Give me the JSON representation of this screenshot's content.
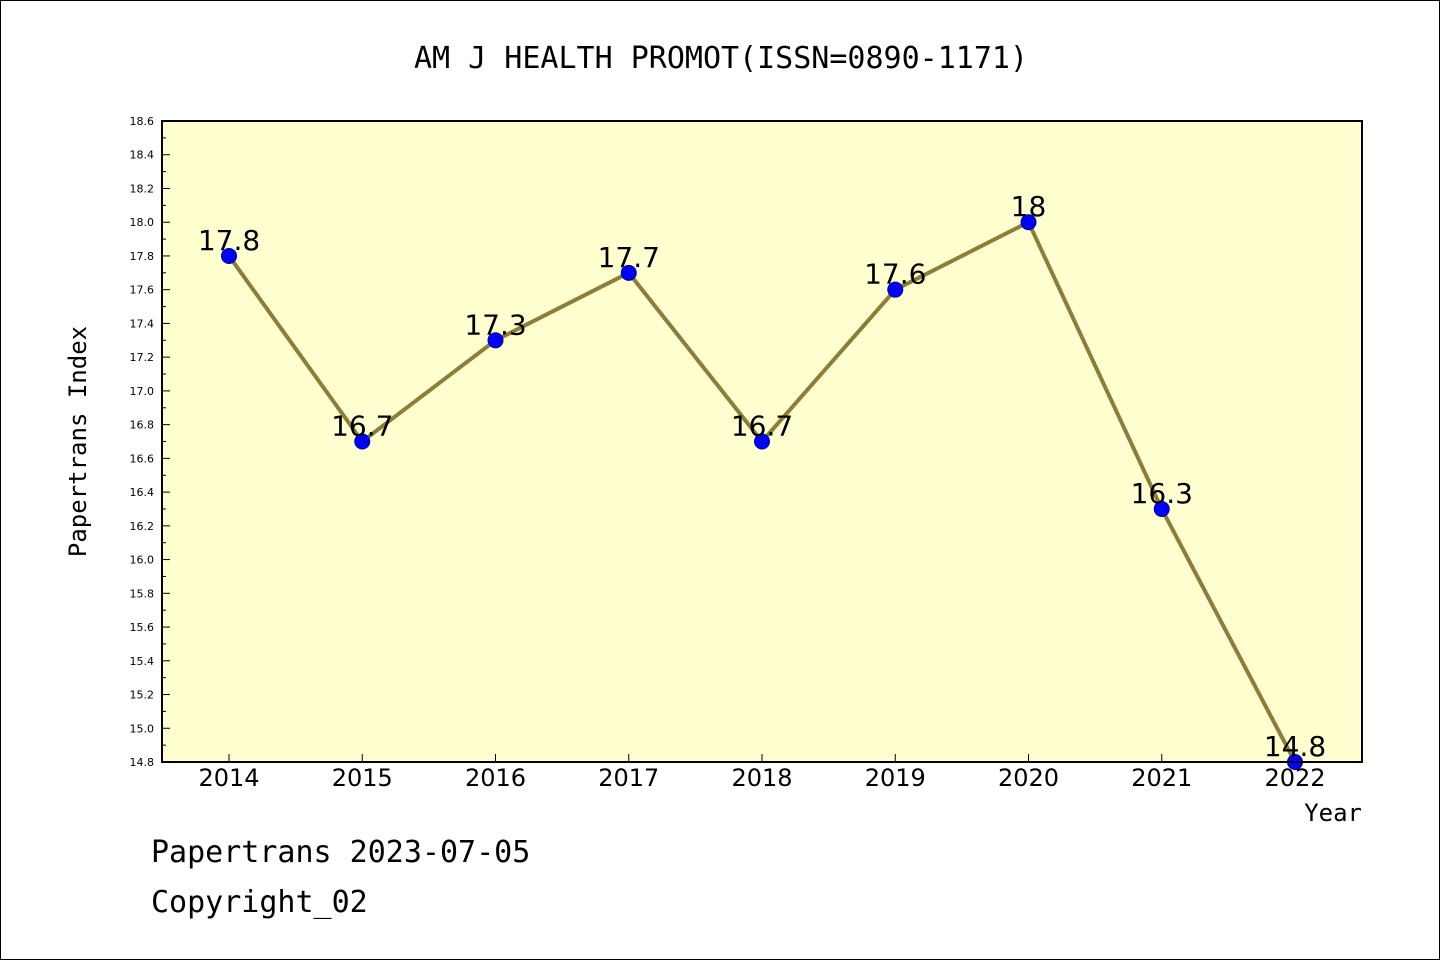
{
  "footer": {
    "line1": "Papertrans 2023-07-05",
    "line2": "Copyright_02"
  },
  "chart_data": {
    "type": "line",
    "title": "AM J HEALTH PROMOT(ISSN=0890-1171)",
    "xlabel": "Year",
    "ylabel": "Papertrans Index",
    "categories": [
      "2014",
      "2015",
      "2016",
      "2017",
      "2018",
      "2019",
      "2020",
      "2021",
      "2022"
    ],
    "values": [
      17.8,
      16.7,
      17.3,
      17.7,
      16.7,
      17.6,
      18.0,
      16.3,
      14.8
    ],
    "data_labels": [
      "17.8",
      "16.7",
      "17.3",
      "17.7",
      "16.7",
      "17.6",
      "18",
      "16.3",
      "14.8"
    ],
    "ylim": [
      14.8,
      18.6
    ],
    "y_tick_labels": [
      "14.8",
      "15.0",
      "15.2",
      "15.4",
      "15.6",
      "15.8",
      "16.0",
      "16.2",
      "16.4",
      "16.6",
      "16.8",
      "17.0",
      "17.2",
      "17.4",
      "17.6",
      "17.8",
      "18.0",
      "18.2",
      "18.4",
      "18.6"
    ],
    "grid": false,
    "colors": {
      "plot_background": "#ffffd0",
      "line": "#8c7d3a",
      "marker_fill": "#0000ff",
      "marker_edge": "#00008b"
    }
  }
}
